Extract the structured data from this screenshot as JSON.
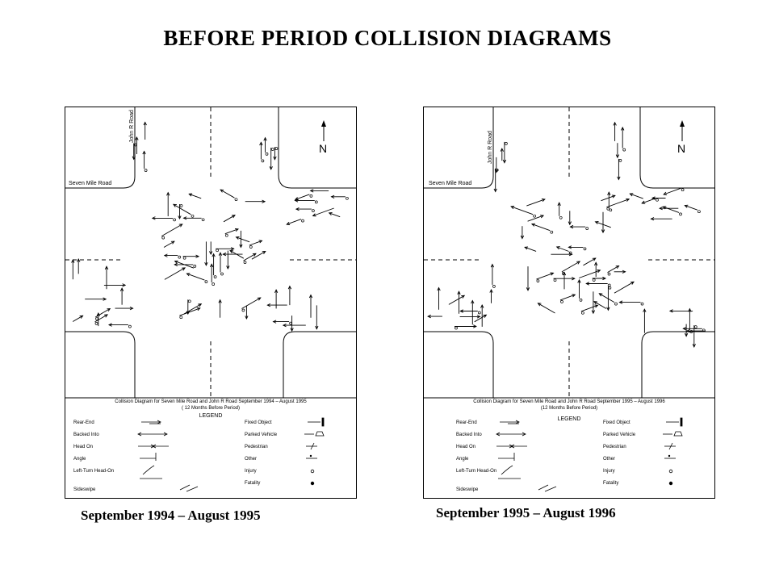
{
  "title": "BEFORE PERIOD COLLISION DIAGRAMS",
  "north_label": "N",
  "road_ns": "John R Road",
  "road_ew": "Seven Mile Road",
  "panels": [
    {
      "caption": "September 1994 – August 1995",
      "legend_title": "Collision Diagram for Seven Mile Road and John R Road September 1994 – August 1995",
      "legend_subtitle": "( 12 Months Before Period)",
      "legend_heading": "LEGEND",
      "legend_left": [
        "Rear-End",
        "Backed Into",
        "Head On",
        "Angle",
        "Left-Turn Head-On",
        "Sideswipe"
      ],
      "legend_right": [
        "Fixed Object",
        "Parked Vehicle",
        "Pedestrian",
        "Other",
        "Injury",
        "Fatality"
      ]
    },
    {
      "caption": "September 1995 – August 1996",
      "legend_title": "Collision Diagram for Seven Mile Road and John R Road September 1995 – August 1996",
      "legend_subtitle": "(12 Months Before Period)",
      "legend_heading": "LEGEND",
      "legend_left": [
        "Rear-End",
        "Backed Into",
        "Head On",
        "Angle",
        "Left-Turn Head-On",
        "Sideswipe"
      ],
      "legend_right": [
        "Fixed Object",
        "Parked Vehicle",
        "Pedestrian",
        "Other",
        "Injury",
        "Fatality"
      ]
    }
  ]
}
